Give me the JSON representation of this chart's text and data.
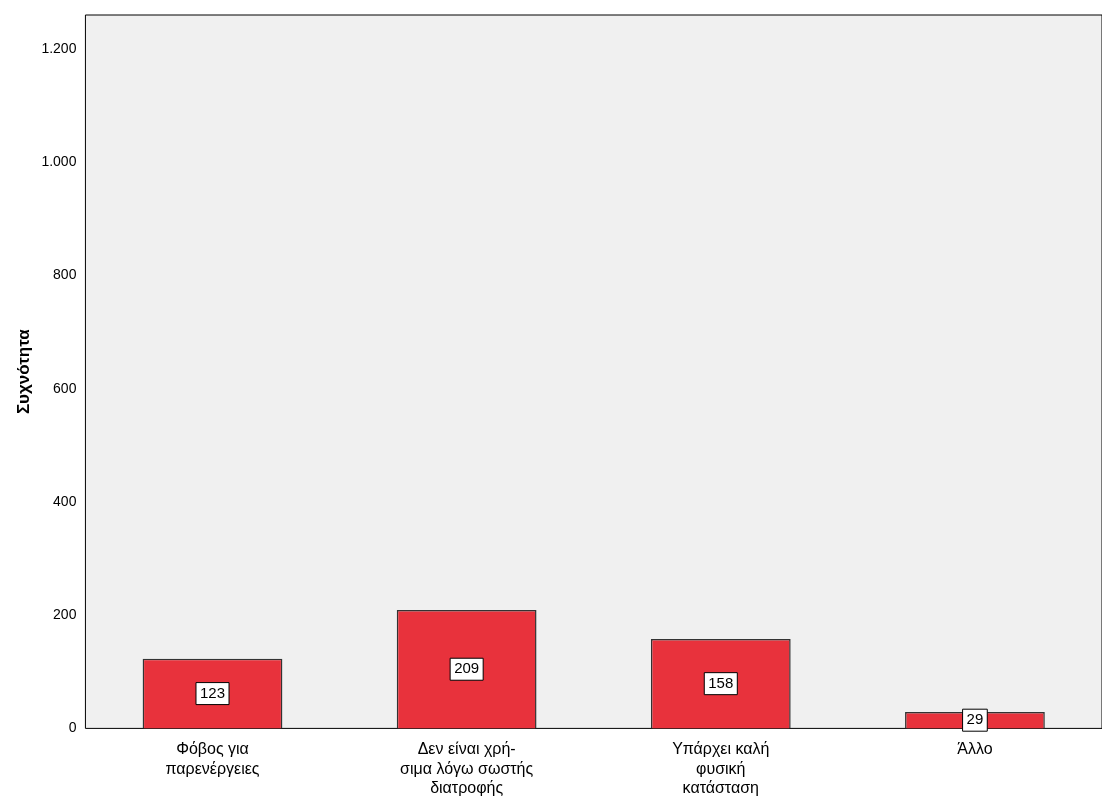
{
  "chart_data": {
    "type": "bar",
    "ylabel": "Συχνότητα",
    "categories": [
      "Φόβος για\nπαρενέργειες",
      "Δεν είναι χρή-\nσιμα λόγω σωστής\nδιατροφής",
      "Υπάρχει καλή\nφυσική\nκατάσταση",
      "Άλλο"
    ],
    "values": [
      123,
      209,
      158,
      29
    ],
    "color": "#e8323c",
    "data_labels": true,
    "ylim": [
      0,
      1260
    ],
    "yticks": [
      0,
      200,
      400,
      600,
      800,
      {
        "value": 1000,
        "label": "1.000"
      },
      {
        "value": 1200,
        "label": "1.200"
      }
    ],
    "grid": false,
    "legend": false
  }
}
